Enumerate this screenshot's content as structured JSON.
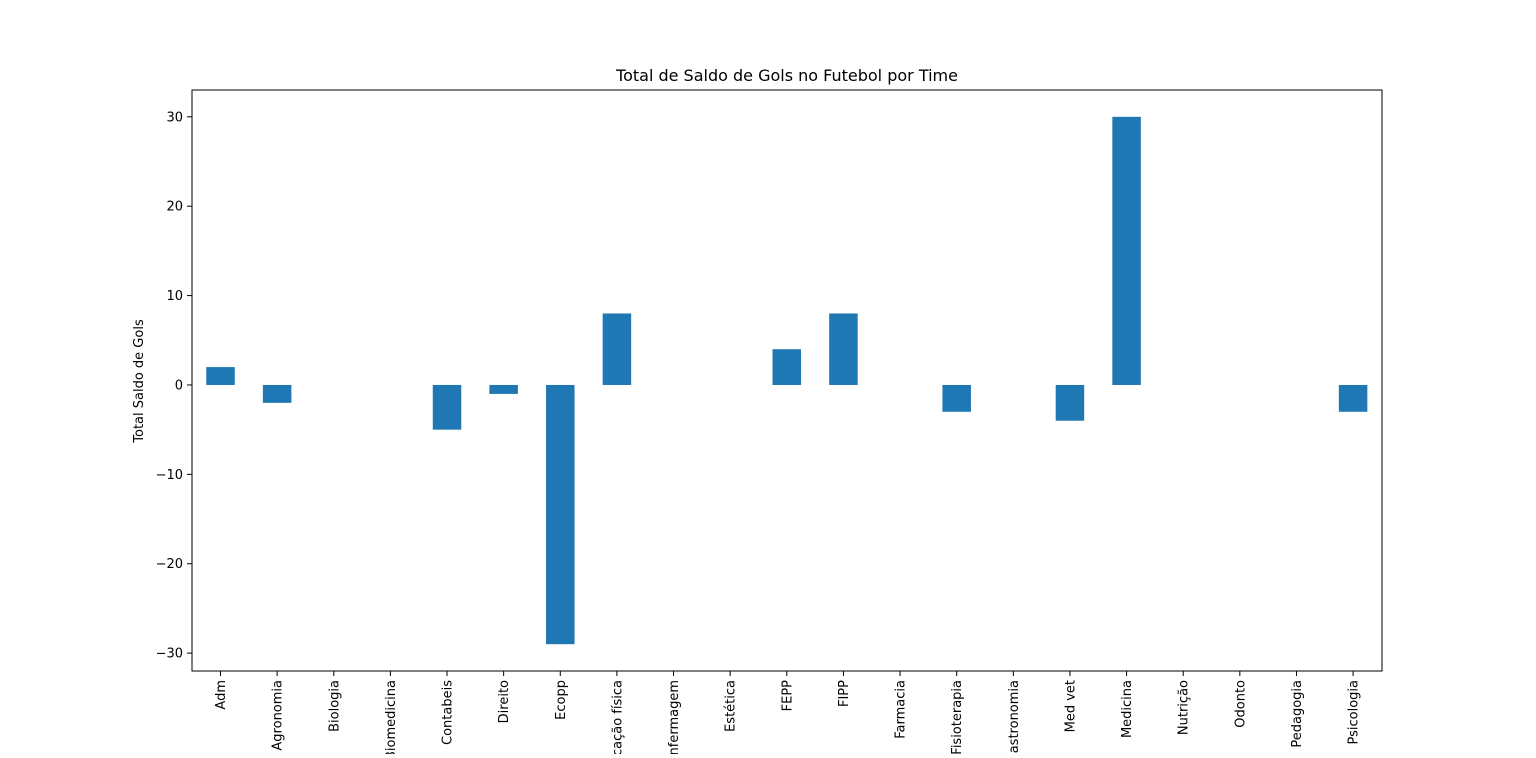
{
  "chart_data": {
    "type": "bar",
    "title": "Total de Saldo de Gols no Futebol por Time",
    "xlabel": "",
    "ylabel": "Total Saldo de Gols",
    "ylim": [
      -32,
      33
    ],
    "yticks": [
      30,
      20,
      10,
      0,
      -10,
      -20,
      -30
    ],
    "ytick_labels": [
      "30",
      "20",
      "10",
      "0",
      "−10",
      "−20",
      "−30"
    ],
    "grid": false,
    "bar_color": "#1f77b4",
    "categories": [
      "Adm",
      "Agronomia",
      "Biologia",
      "Biomedicina",
      "Contabeis",
      "Direito",
      "Ecopp",
      "Educação física",
      "Enfermagem",
      "Estética",
      "FEPP",
      "FIPP",
      "Farmacia",
      "Fisioterapia",
      "Gastronomia",
      "Med vet",
      "Medicina",
      "Nutrição",
      "Odonto",
      "Pedagogia",
      "Psicologia"
    ],
    "values": [
      2,
      -2,
      0,
      0,
      -5,
      -1,
      -29,
      8,
      0,
      0,
      4,
      8,
      0,
      -3,
      0,
      -4,
      30,
      0,
      0,
      0,
      -3
    ]
  }
}
